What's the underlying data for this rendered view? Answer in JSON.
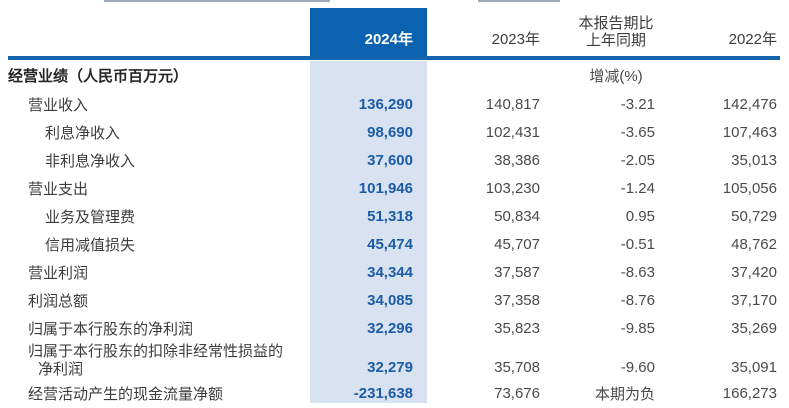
{
  "colors": {
    "accent_dark_blue": "#0a62b0",
    "highlight_light_blue": "#d9e2f1",
    "rule_blue": "#1463ad",
    "value_2024_text": "#1b5ca6"
  },
  "table": {
    "columns": {
      "y2024": "2024年",
      "y2023": "2023年",
      "change_line1": "本报告期比",
      "change_line2": "上年同期",
      "y2022": "2022年"
    },
    "unit_header": "经营业绩（人民币百万元）",
    "change_subheader": "增减(%)",
    "rows": [
      {
        "label": "营业收入",
        "indent": 1,
        "v2024": "136,290",
        "v2023": "140,817",
        "chg": "-3.21",
        "v2022": "142,476"
      },
      {
        "label": "利息净收入",
        "indent": 2,
        "v2024": "98,690",
        "v2023": "102,431",
        "chg": "-3.65",
        "v2022": "107,463"
      },
      {
        "label": "非利息净收入",
        "indent": 2,
        "v2024": "37,600",
        "v2023": "38,386",
        "chg": "-2.05",
        "v2022": "35,013"
      },
      {
        "label": "营业支出",
        "indent": 1,
        "v2024": "101,946",
        "v2023": "103,230",
        "chg": "-1.24",
        "v2022": "105,056"
      },
      {
        "label": "业务及管理费",
        "indent": 2,
        "v2024": "51,318",
        "v2023": "50,834",
        "chg": "0.95",
        "v2022": "50,729"
      },
      {
        "label": "信用减值损失",
        "indent": 2,
        "v2024": "45,474",
        "v2023": "45,707",
        "chg": "-0.51",
        "v2022": "48,762"
      },
      {
        "label": "营业利润",
        "indent": 1,
        "v2024": "34,344",
        "v2023": "37,587",
        "chg": "-8.63",
        "v2022": "37,420"
      },
      {
        "label": "利润总额",
        "indent": 1,
        "v2024": "34,085",
        "v2023": "37,358",
        "chg": "-8.76",
        "v2022": "37,170"
      },
      {
        "label": "归属于本行股东的净利润",
        "indent": 1,
        "v2024": "32,296",
        "v2023": "35,823",
        "chg": "-9.85",
        "v2022": "35,269"
      },
      {
        "label": "归属于本行股东的扣除非经常性损益的",
        "label2": "净利润",
        "indent": 1,
        "v2024": "32,279",
        "v2023": "35,708",
        "chg": "-9.60",
        "v2022": "35,091"
      },
      {
        "label": "经营活动产生的现金流量净额",
        "indent": 1,
        "v2024": "-231,638",
        "v2023": "73,676",
        "chg": "本期为负",
        "v2022": "166,273"
      }
    ]
  }
}
